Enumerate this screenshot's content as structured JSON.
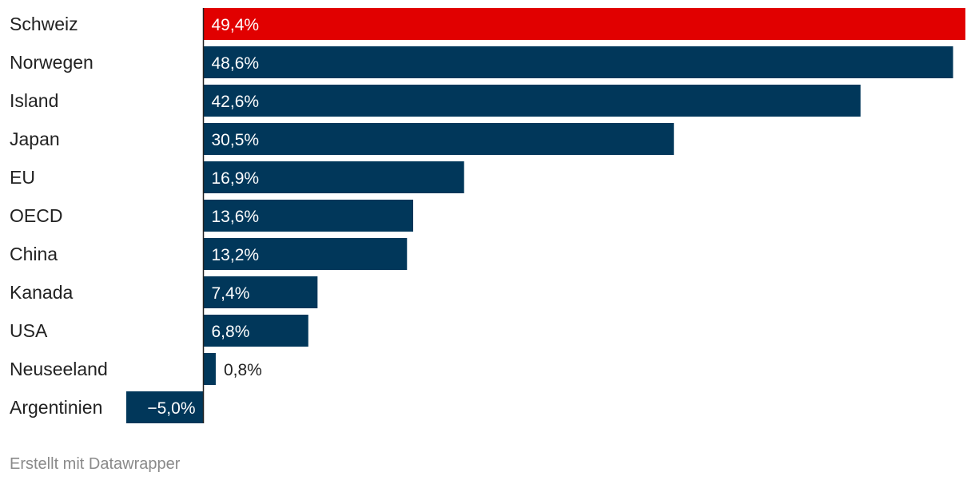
{
  "chart_data": {
    "type": "bar",
    "orientation": "horizontal",
    "categories": [
      "Schweiz",
      "Norwegen",
      "Island",
      "Japan",
      "EU",
      "OECD",
      "China",
      "Kanada",
      "USA",
      "Neuseeland",
      "Argentinien"
    ],
    "values": [
      49.4,
      48.6,
      42.6,
      30.5,
      16.9,
      13.6,
      13.2,
      7.4,
      6.8,
      0.8,
      -5.0
    ],
    "value_labels": [
      "49,4%",
      "48,6%",
      "42,6%",
      "30,5%",
      "16,9%",
      "13,6%",
      "13,2%",
      "7,4%",
      "6,8%",
      "0,8%",
      "−5,0%"
    ],
    "highlight": "Schweiz",
    "xlim": [
      -5.0,
      49.4
    ],
    "grid": false,
    "colors": {
      "bar": "#01375a",
      "highlight": "#e10000",
      "axis": "#222222",
      "label_inside": "#ffffff",
      "label_outside": "#222222"
    }
  },
  "footer": {
    "credit": "Erstellt mit Datawrapper"
  }
}
